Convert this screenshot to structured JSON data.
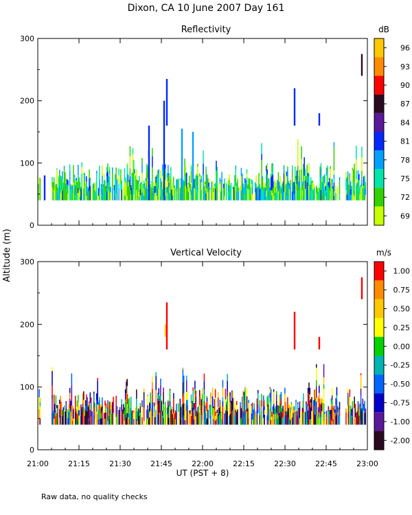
{
  "figure": {
    "title": "Dixon, CA 10 June 2007  Day 161",
    "ylabel": "Altitude (m)",
    "xlabel": "UT  (PST + 8)",
    "footnote": "Raw data, no quality checks"
  },
  "chart_data": [
    {
      "type": "heatmap",
      "title": "Reflectivity",
      "xlabel": "UT  (PST + 8)",
      "ylabel": "Altitude (m)",
      "x_range_minutes_after_2100": [
        0,
        120
      ],
      "ylim": [
        0,
        300
      ],
      "x_ticks": [
        "21:00",
        "21:15",
        "21:30",
        "21:45",
        "22:00",
        "22:15",
        "22:30",
        "22:45",
        "23:00"
      ],
      "y_ticks": [
        "0",
        "100",
        "200",
        "300"
      ],
      "colorbar": {
        "unit": "dB",
        "labels": [
          "96",
          "93",
          "90",
          "87",
          "84",
          "81",
          "78",
          "75",
          "72",
          "69"
        ],
        "colors": [
          "#ffc800",
          "#ff8c00",
          "#ff0000",
          "#2a0a1e",
          "#5a189a",
          "#0028ff",
          "#00a0ff",
          "#00e6aa",
          "#32d200",
          "#c8ff00"
        ]
      },
      "events": [
        {
          "t": 2.5,
          "bottom": 40,
          "top": 80,
          "dB": 81
        },
        {
          "t": 40.5,
          "bottom": 40,
          "top": 160,
          "dB": 81
        },
        {
          "t": 46.0,
          "bottom": 40,
          "top": 200,
          "dB": 81
        },
        {
          "t": 47.0,
          "bottom": 160,
          "top": 235,
          "dB": 81
        },
        {
          "t": 52.5,
          "bottom": 40,
          "top": 155,
          "dB": 80
        },
        {
          "t": 56.5,
          "bottom": 40,
          "top": 150,
          "dB": 80
        },
        {
          "t": 93.5,
          "bottom": 160,
          "top": 220,
          "dB": 81
        },
        {
          "t": 102.5,
          "bottom": 160,
          "top": 180,
          "dB": 81
        },
        {
          "t": 118.0,
          "bottom": 240,
          "top": 275,
          "dB": 87
        }
      ]
    },
    {
      "type": "heatmap",
      "title": "Vertical Velocity",
      "xlabel": "UT  (PST + 8)",
      "ylabel": "Altitude (m)",
      "x_range_minutes_after_2100": [
        0,
        120
      ],
      "ylim": [
        0,
        300
      ],
      "x_ticks": [
        "21:00",
        "21:15",
        "21:30",
        "21:45",
        "22:00",
        "22:15",
        "22:30",
        "22:45",
        "23:00"
      ],
      "y_ticks": [
        "0",
        "100",
        "200",
        "300"
      ],
      "colorbar": {
        "unit": "m/s",
        "labels": [
          "1.00",
          "0.75",
          "0.50",
          "0.25",
          "0.00",
          "-0.25",
          "-0.50",
          "-0.75",
          "-1.00",
          "-2.00"
        ],
        "colors": [
          "#ff0000",
          "#ff8c00",
          "#ffc800",
          "#ffff00",
          "#00d200",
          "#00b4b4",
          "#0064ff",
          "#0000c8",
          "#5a189a",
          "#2a0a1e"
        ]
      },
      "events": [
        {
          "t": 46.5,
          "bottom": 180,
          "top": 200,
          "ms": 0.5
        },
        {
          "t": 47.0,
          "bottom": 160,
          "top": 235,
          "ms": 1.0
        },
        {
          "t": 93.5,
          "bottom": 160,
          "top": 220,
          "ms": 1.0
        },
        {
          "t": 102.5,
          "bottom": 160,
          "top": 180,
          "ms": 1.0
        },
        {
          "t": 118.0,
          "bottom": 240,
          "top": 275,
          "ms": 1.0
        }
      ]
    }
  ]
}
